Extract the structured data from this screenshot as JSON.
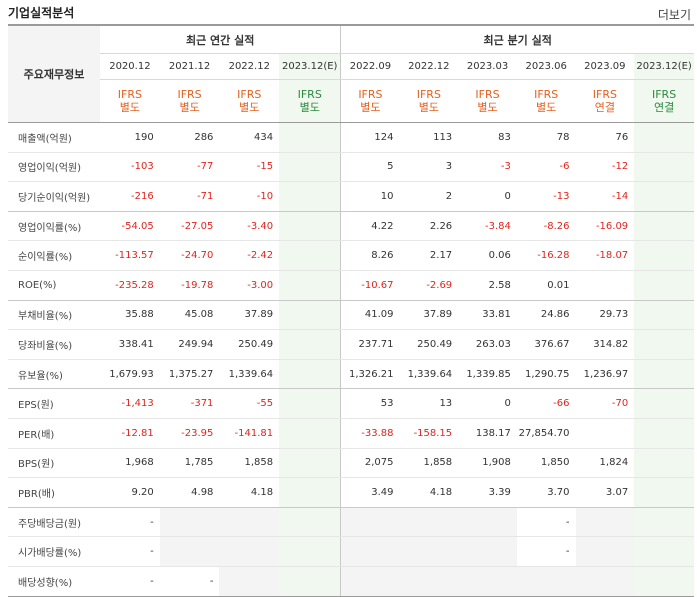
{
  "header": {
    "title": "기업실적분석",
    "more_label": "더보기"
  },
  "table": {
    "corner_label": "주요재무정보",
    "groups": {
      "annual": "최근 연간 실적",
      "quarterly": "최근 분기 실적"
    },
    "periods": [
      "2020.12",
      "2021.12",
      "2022.12",
      "2023.12(E)",
      "2022.09",
      "2022.12",
      "2023.03",
      "2023.06",
      "2023.09",
      "2023.12(E)"
    ],
    "basis": [
      [
        "IFRS",
        "별도"
      ],
      [
        "IFRS",
        "별도"
      ],
      [
        "IFRS",
        "별도"
      ],
      [
        "IFRS",
        "별도"
      ],
      [
        "IFRS",
        "별도"
      ],
      [
        "IFRS",
        "별도"
      ],
      [
        "IFRS",
        "별도"
      ],
      [
        "IFRS",
        "별도"
      ],
      [
        "IFRS",
        "연결"
      ],
      [
        "IFRS",
        "연결"
      ]
    ],
    "rows": [
      {
        "label": "매출액(억원)",
        "values": [
          "190",
          "286",
          "434",
          "",
          "124",
          "113",
          "83",
          "78",
          "76",
          ""
        ]
      },
      {
        "label": "영업이익(억원)",
        "values": [
          "-103",
          "-77",
          "-15",
          "",
          "5",
          "3",
          "-3",
          "-6",
          "-12",
          ""
        ]
      },
      {
        "label": "당기순이익(억원)",
        "values": [
          "-216",
          "-71",
          "-10",
          "",
          "10",
          "2",
          "0",
          "-13",
          "-14",
          ""
        ]
      },
      {
        "label": "영업이익률(%)",
        "values": [
          "-54.05",
          "-27.05",
          "-3.40",
          "",
          "4.22",
          "2.26",
          "-3.84",
          "-8.26",
          "-16.09",
          ""
        ]
      },
      {
        "label": "순이익률(%)",
        "values": [
          "-113.57",
          "-24.70",
          "-2.42",
          "",
          "8.26",
          "2.17",
          "0.06",
          "-16.28",
          "-18.07",
          ""
        ]
      },
      {
        "label": "ROE(%)",
        "values": [
          "-235.28",
          "-19.78",
          "-3.00",
          "",
          "-10.67",
          "-2.69",
          "2.58",
          "0.01",
          "",
          ""
        ]
      },
      {
        "label": "부채비율(%)",
        "values": [
          "35.88",
          "45.08",
          "37.89",
          "",
          "41.09",
          "37.89",
          "33.81",
          "24.86",
          "29.73",
          ""
        ]
      },
      {
        "label": "당좌비율(%)",
        "values": [
          "338.41",
          "249.94",
          "250.49",
          "",
          "237.71",
          "250.49",
          "263.03",
          "376.67",
          "314.82",
          ""
        ]
      },
      {
        "label": "유보율(%)",
        "values": [
          "1,679.93",
          "1,375.27",
          "1,339.64",
          "",
          "1,326.21",
          "1,339.64",
          "1,339.85",
          "1,290.75",
          "1,236.97",
          ""
        ]
      },
      {
        "label": "EPS(원)",
        "values": [
          "-1,413",
          "-371",
          "-55",
          "",
          "53",
          "13",
          "0",
          "-66",
          "-70",
          ""
        ]
      },
      {
        "label": "PER(배)",
        "values": [
          "-12.81",
          "-23.95",
          "-141.81",
          "",
          "-33.88",
          "-158.15",
          "138.17",
          "27,854.70",
          "",
          ""
        ]
      },
      {
        "label": "BPS(원)",
        "values": [
          "1,968",
          "1,785",
          "1,858",
          "",
          "2,075",
          "1,858",
          "1,908",
          "1,850",
          "1,824",
          ""
        ]
      },
      {
        "label": "PBR(배)",
        "values": [
          "9.20",
          "4.98",
          "4.18",
          "",
          "3.49",
          "4.18",
          "3.39",
          "3.70",
          "3.07",
          ""
        ]
      },
      {
        "label": "주당배당금(원)",
        "values": [
          "-",
          "",
          "",
          "",
          "",
          "",
          "",
          "-",
          "",
          ""
        ]
      },
      {
        "label": "시가배당률(%)",
        "values": [
          "-",
          "",
          "",
          "",
          "",
          "",
          "",
          "-",
          "",
          ""
        ]
      },
      {
        "label": "배당성향(%)",
        "values": [
          "-",
          "-",
          "",
          "",
          "",
          "",
          "",
          "",
          "",
          ""
        ]
      }
    ]
  },
  "colors": {
    "negative": "#e0241e",
    "basis": "#e4601f",
    "estimate": "#2a8a3e",
    "estimate_bg": "#f1f8ef"
  }
}
